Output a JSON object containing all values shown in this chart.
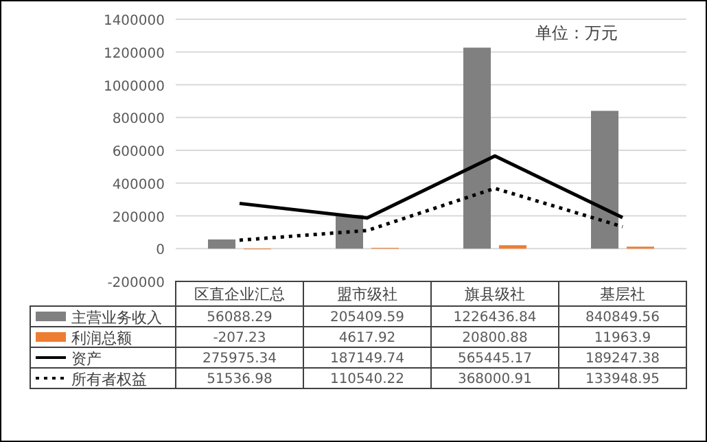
{
  "chart_data": {
    "type": "bar",
    "categories": [
      "区直企业汇总",
      "盟市级社",
      "旗县级社",
      "基层社"
    ],
    "series": [
      {
        "name": "主营业务收入",
        "color": "#808080",
        "values": [
          56088.29,
          205409.59,
          1226436.84,
          840849.56
        ]
      },
      {
        "name": "利润总额",
        "color": "#ed7d31",
        "values": [
          -207.23,
          4617.92,
          20800.88,
          11963.9
        ]
      },
      {
        "name": "资产",
        "type": "line",
        "color": "#000000",
        "line_style": "solid",
        "values": [
          275975.34,
          187149.74,
          565445.17,
          189247.38
        ]
      },
      {
        "name": "所有者权益",
        "type": "line",
        "color": "#000000",
        "line_style": "dotted",
        "values": [
          51536.98,
          110540.22,
          368000.91,
          133948.95
        ]
      }
    ],
    "ylim": [
      -200000,
      1400000
    ],
    "yticks": [
      -200000,
      0,
      200000,
      400000,
      600000,
      800000,
      1000000,
      1200000,
      1400000
    ],
    "grid": "y",
    "data_labels": true,
    "legend": "bottom",
    "annotations": [
      "单位：万元"
    ]
  }
}
